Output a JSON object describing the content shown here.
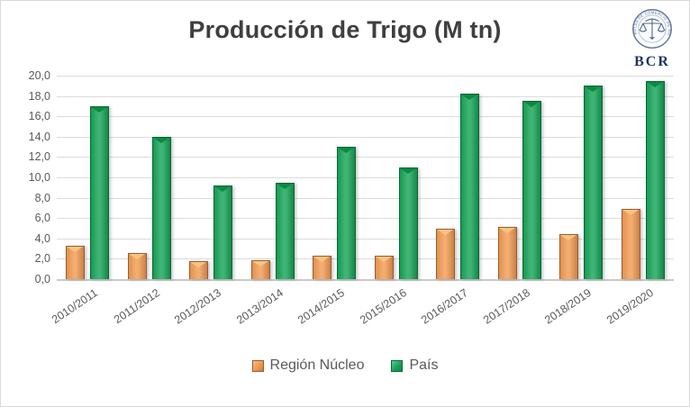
{
  "title": "Producción de Trigo (M tn)",
  "logo": {
    "label": "BCR",
    "seal_text": "BOLSA DE COMERCIO DE ROSARIO"
  },
  "chart_data": {
    "type": "bar",
    "title": "Producción de Trigo (M tn)",
    "categories": [
      "2010/2011",
      "2011/2012",
      "2012/2013",
      "2013/2014",
      "2014/2015",
      "2015/2016",
      "2016/2017",
      "2017/2018",
      "2018/2019",
      "2019/2020"
    ],
    "series": [
      {
        "name": "Región Núcleo",
        "color": "#F09A52",
        "bevel": "#F9C480",
        "values": [
          3.3,
          2.6,
          1.8,
          1.9,
          2.3,
          2.3,
          5.0,
          5.1,
          4.4,
          6.9
        ]
      },
      {
        "name": "País",
        "color": "#16A457",
        "bevel": "#0A8A45",
        "values": [
          17.0,
          14.0,
          9.2,
          9.5,
          13.0,
          11.0,
          18.2,
          17.5,
          19.0,
          19.5
        ]
      }
    ],
    "xlabel": "",
    "ylabel": "",
    "ylim": [
      0,
      20
    ],
    "ytick_step": 2,
    "ytick_labels": [
      "20,0",
      "18,0",
      "16,0",
      "14,0",
      "12,0",
      "10,0",
      "8,0",
      "6,0",
      "4,0",
      "2,0",
      "0,0"
    ],
    "decimal_separator": ",",
    "grid": true,
    "legend_position": "bottom",
    "colors": {
      "grid": "#DADCDB",
      "axis_line": "#C9C9C9",
      "tick_text": "#595959",
      "title_text": "#3F3F3F"
    }
  }
}
